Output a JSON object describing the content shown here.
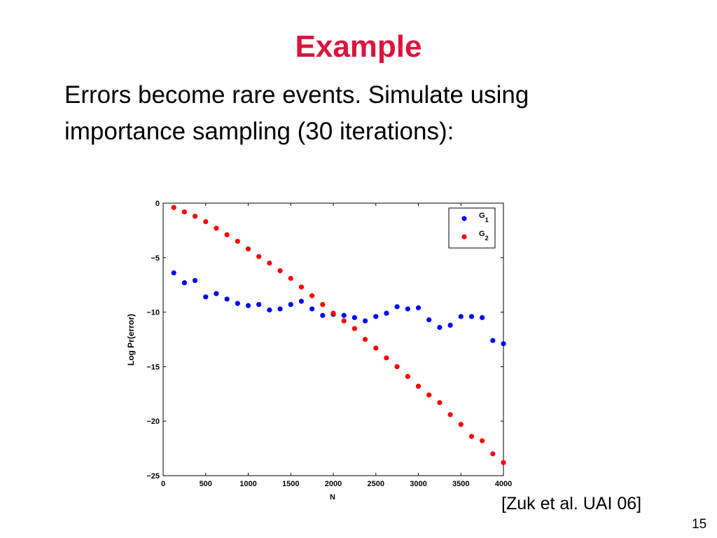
{
  "slide": {
    "title": "Example",
    "body_lines": [
      "Errors become rare events. Simulate using",
      "importance sampling (30 iterations):"
    ],
    "citation": "[Zuk et al. UAI 06]",
    "page_number": "15",
    "title_color": "#dc143c"
  },
  "chart_data": {
    "type": "scatter",
    "title": "",
    "xlabel": "N",
    "ylabel": "Log Pr(error)",
    "xlim": [
      0,
      4000
    ],
    "ylim": [
      -25,
      0
    ],
    "xticks": [
      0,
      500,
      1000,
      1500,
      2000,
      2500,
      3000,
      3500,
      4000
    ],
    "yticks": [
      0,
      -5,
      -10,
      -15,
      -20,
      -25
    ],
    "ytick_labels": [
      "0",
      "−5",
      "−10",
      "−15",
      "−20",
      "−25"
    ],
    "grid": false,
    "legend_position": "top-right",
    "series": [
      {
        "name": "G1",
        "label_base": "G",
        "label_sub": "1",
        "color": "#0000ff",
        "x": [
          125,
          250,
          375,
          500,
          625,
          750,
          875,
          1000,
          1125,
          1250,
          1375,
          1500,
          1625,
          1750,
          1875,
          2000,
          2125,
          2250,
          2375,
          2500,
          2625,
          2750,
          2875,
          3000,
          3125,
          3250,
          3375,
          3500,
          3625,
          3750,
          3875,
          4000
        ],
        "y": [
          -6.4,
          -7.3,
          -7.1,
          -8.6,
          -8.3,
          -8.8,
          -9.2,
          -9.4,
          -9.3,
          -9.8,
          -9.7,
          -9.3,
          -9.0,
          -9.7,
          -10.3,
          -10.2,
          -10.3,
          -10.5,
          -10.8,
          -10.4,
          -10.1,
          -9.5,
          -9.7,
          -9.6,
          -10.7,
          -11.4,
          -11.2,
          -10.4,
          -10.4,
          -10.5,
          -12.6,
          -12.9
        ]
      },
      {
        "name": "G2",
        "label_base": "G",
        "label_sub": "2",
        "color": "#ff0000",
        "x": [
          125,
          250,
          375,
          500,
          625,
          750,
          875,
          1000,
          1125,
          1250,
          1375,
          1500,
          1625,
          1750,
          1875,
          2000,
          2125,
          2250,
          2375,
          2500,
          2625,
          2750,
          2875,
          3000,
          3125,
          3250,
          3375,
          3500,
          3625,
          3750,
          3875,
          4000
        ],
        "y": [
          -0.4,
          -0.8,
          -1.2,
          -1.7,
          -2.3,
          -2.9,
          -3.5,
          -4.2,
          -4.9,
          -5.5,
          -6.2,
          -6.9,
          -7.7,
          -8.5,
          -9.3,
          -10.1,
          -10.8,
          -11.5,
          -12.5,
          -13.3,
          -14.2,
          -15.0,
          -15.9,
          -16.8,
          -17.6,
          -18.3,
          -19.4,
          -20.3,
          -21.4,
          -21.8,
          -23.0,
          -23.8
        ]
      }
    ]
  }
}
